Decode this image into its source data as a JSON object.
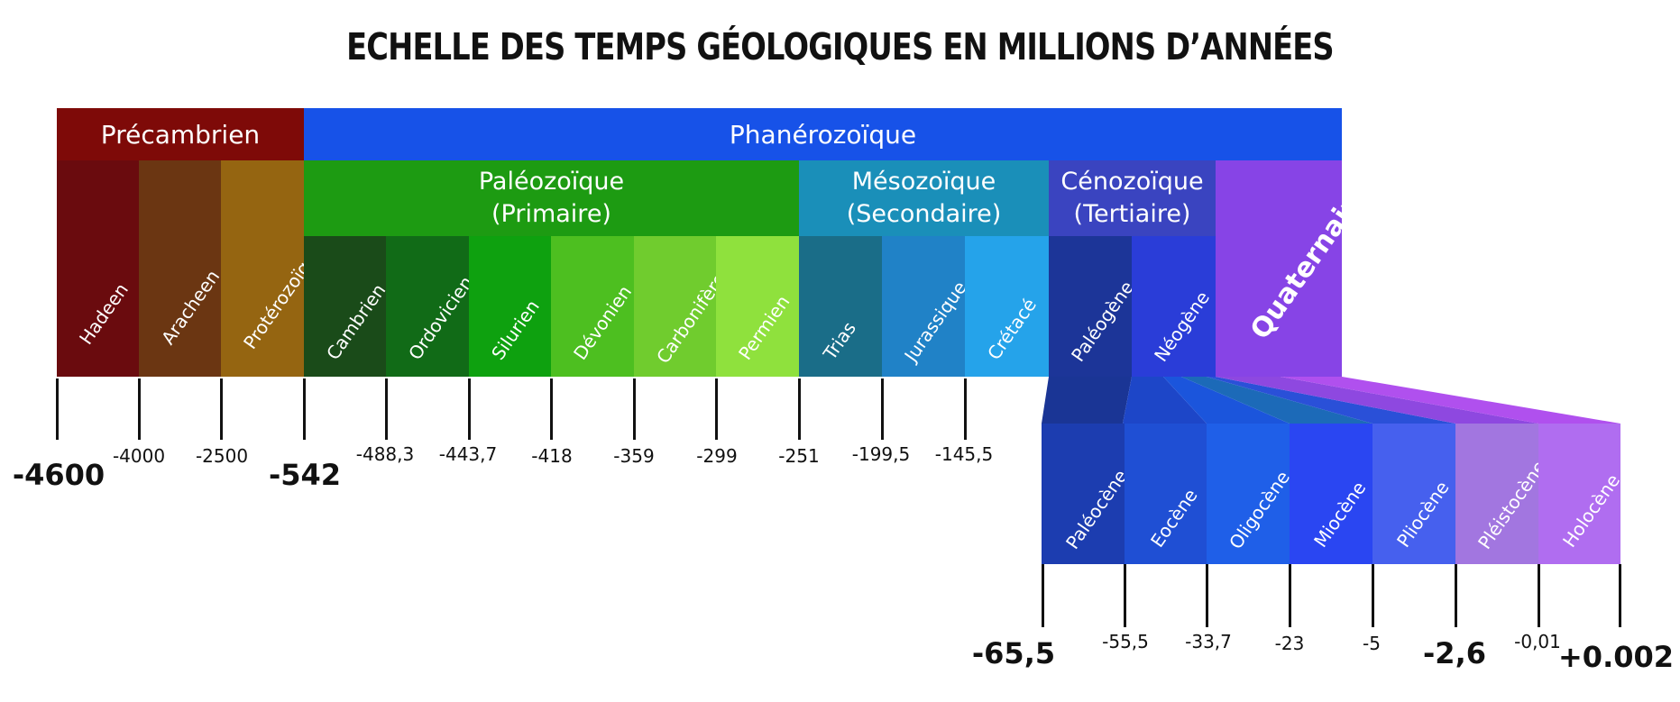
{
  "title": "ECHELLE DES TEMPS GÉOLOGIQUES EN MILLIONS D’ANNÉES",
  "eons": [
    {
      "name": "Précambrien",
      "color": "#7e0a08"
    },
    {
      "name": "Phanérozoïque",
      "color": "#1752e8"
    }
  ],
  "eras": [
    {
      "line1": "Paléozoïque",
      "line2": "(Primaire)",
      "color": "#1d9b12"
    },
    {
      "line1": "Mésozoïque",
      "line2": "(Secondaire)",
      "color": "#1a8fb9"
    },
    {
      "line1": "Cénozoïque",
      "line2": "(Tertiaire)",
      "color": "#3a44c0"
    }
  ],
  "periods": [
    {
      "name": "Hadeen",
      "color": "#6a0b0e"
    },
    {
      "name": "Aracheen",
      "color": "#6b3612"
    },
    {
      "name": "Protérozoïque",
      "color": "#956511"
    },
    {
      "name": "Cambrien",
      "color": "#1a4b19"
    },
    {
      "name": "Ordovicien",
      "color": "#116b17"
    },
    {
      "name": "Silurien",
      "color": "#0ea10f"
    },
    {
      "name": "Dévonien",
      "color": "#4dbf20"
    },
    {
      "name": "Carbonifère",
      "color": "#70cc2e"
    },
    {
      "name": "Permien",
      "color": "#8fe13d"
    },
    {
      "name": "Trias",
      "color": "#1a6d88"
    },
    {
      "name": "Jurassique",
      "color": "#2082c7"
    },
    {
      "name": "Crétacé",
      "color": "#25a3ea"
    },
    {
      "name": "Paléogène",
      "color": "#1c3598"
    },
    {
      "name": "Néogène",
      "color": "#2a3dd8"
    },
    {
      "name": "Quaternaire",
      "color": "#8744e6"
    }
  ],
  "epochs": [
    {
      "name": "Paléocène",
      "color": "#1c3db0"
    },
    {
      "name": "Eocène",
      "color": "#1f4fd4"
    },
    {
      "name": "Oligocène",
      "color": "#1f5fe8"
    },
    {
      "name": "Miocène",
      "color": "#2a46f2"
    },
    {
      "name": "Pliocène",
      "color": "#4660ee"
    },
    {
      "name": "Pléistocène",
      "color": "#a276e0"
    },
    {
      "name": "Holocène",
      "color": "#b06df0"
    }
  ],
  "main_ticks": [
    "-4600",
    "-4000",
    "-2500",
    "-542",
    "-488,3",
    "-443,7",
    "-418",
    "-359",
    "-299",
    "-251",
    "-199,5",
    "-145,5"
  ],
  "epoch_ticks": [
    "-65,5",
    "-55,5",
    "-33,7",
    "-23",
    "-5",
    "-2,6",
    "-0,01",
    "+0.002"
  ]
}
